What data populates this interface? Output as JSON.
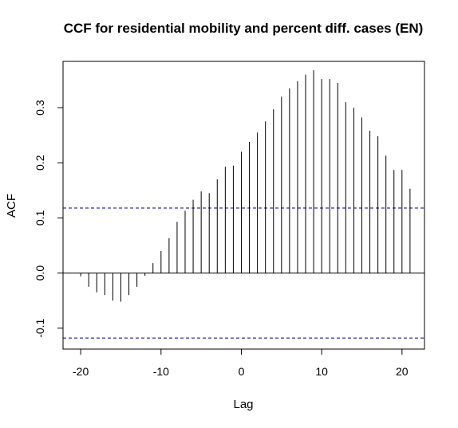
{
  "chart_data": {
    "type": "bar",
    "title": "CCF for residential mobility and percent diff. cases (EN)",
    "xlabel": "Lag",
    "ylabel": "ACF",
    "xlim": [
      -22.2,
      22.8
    ],
    "ylim": [
      -0.138,
      0.384
    ],
    "x_ticks": [
      -20,
      -10,
      0,
      10,
      20
    ],
    "x_tick_labels": [
      "-20",
      "-10",
      "0",
      "10",
      "20"
    ],
    "y_ticks": [
      -0.1,
      0.0,
      0.1,
      0.2,
      0.3
    ],
    "y_tick_labels": [
      "-0.1",
      "0.0",
      "0.1",
      "0.2",
      "0.3"
    ],
    "confidence_band": [
      -0.118,
      0.118
    ],
    "x": [
      -20,
      -19,
      -18,
      -17,
      -16,
      -15,
      -14,
      -13,
      -12,
      -11,
      -10,
      -9,
      -8,
      -7,
      -6,
      -5,
      -4,
      -3,
      -2,
      -1,
      0,
      1,
      2,
      3,
      4,
      5,
      6,
      7,
      8,
      9,
      10,
      11,
      12,
      13,
      14,
      15,
      16,
      17,
      18,
      19,
      20,
      21
    ],
    "values": [
      -0.006,
      -0.025,
      -0.035,
      -0.04,
      -0.05,
      -0.052,
      -0.04,
      -0.025,
      -0.005,
      0.018,
      0.04,
      0.063,
      0.093,
      0.113,
      0.133,
      0.148,
      0.145,
      0.17,
      0.193,
      0.195,
      0.22,
      0.238,
      0.255,
      0.275,
      0.297,
      0.32,
      0.335,
      0.348,
      0.36,
      0.368,
      0.352,
      0.352,
      0.345,
      0.31,
      0.3,
      0.282,
      0.258,
      0.248,
      0.213,
      0.187,
      0.187,
      0.153
    ],
    "grid": false,
    "legend": "none",
    "colors": {
      "bars": "#000000",
      "zero_line": "#000000",
      "confidence": "#00008B",
      "frame": "#000000"
    }
  }
}
